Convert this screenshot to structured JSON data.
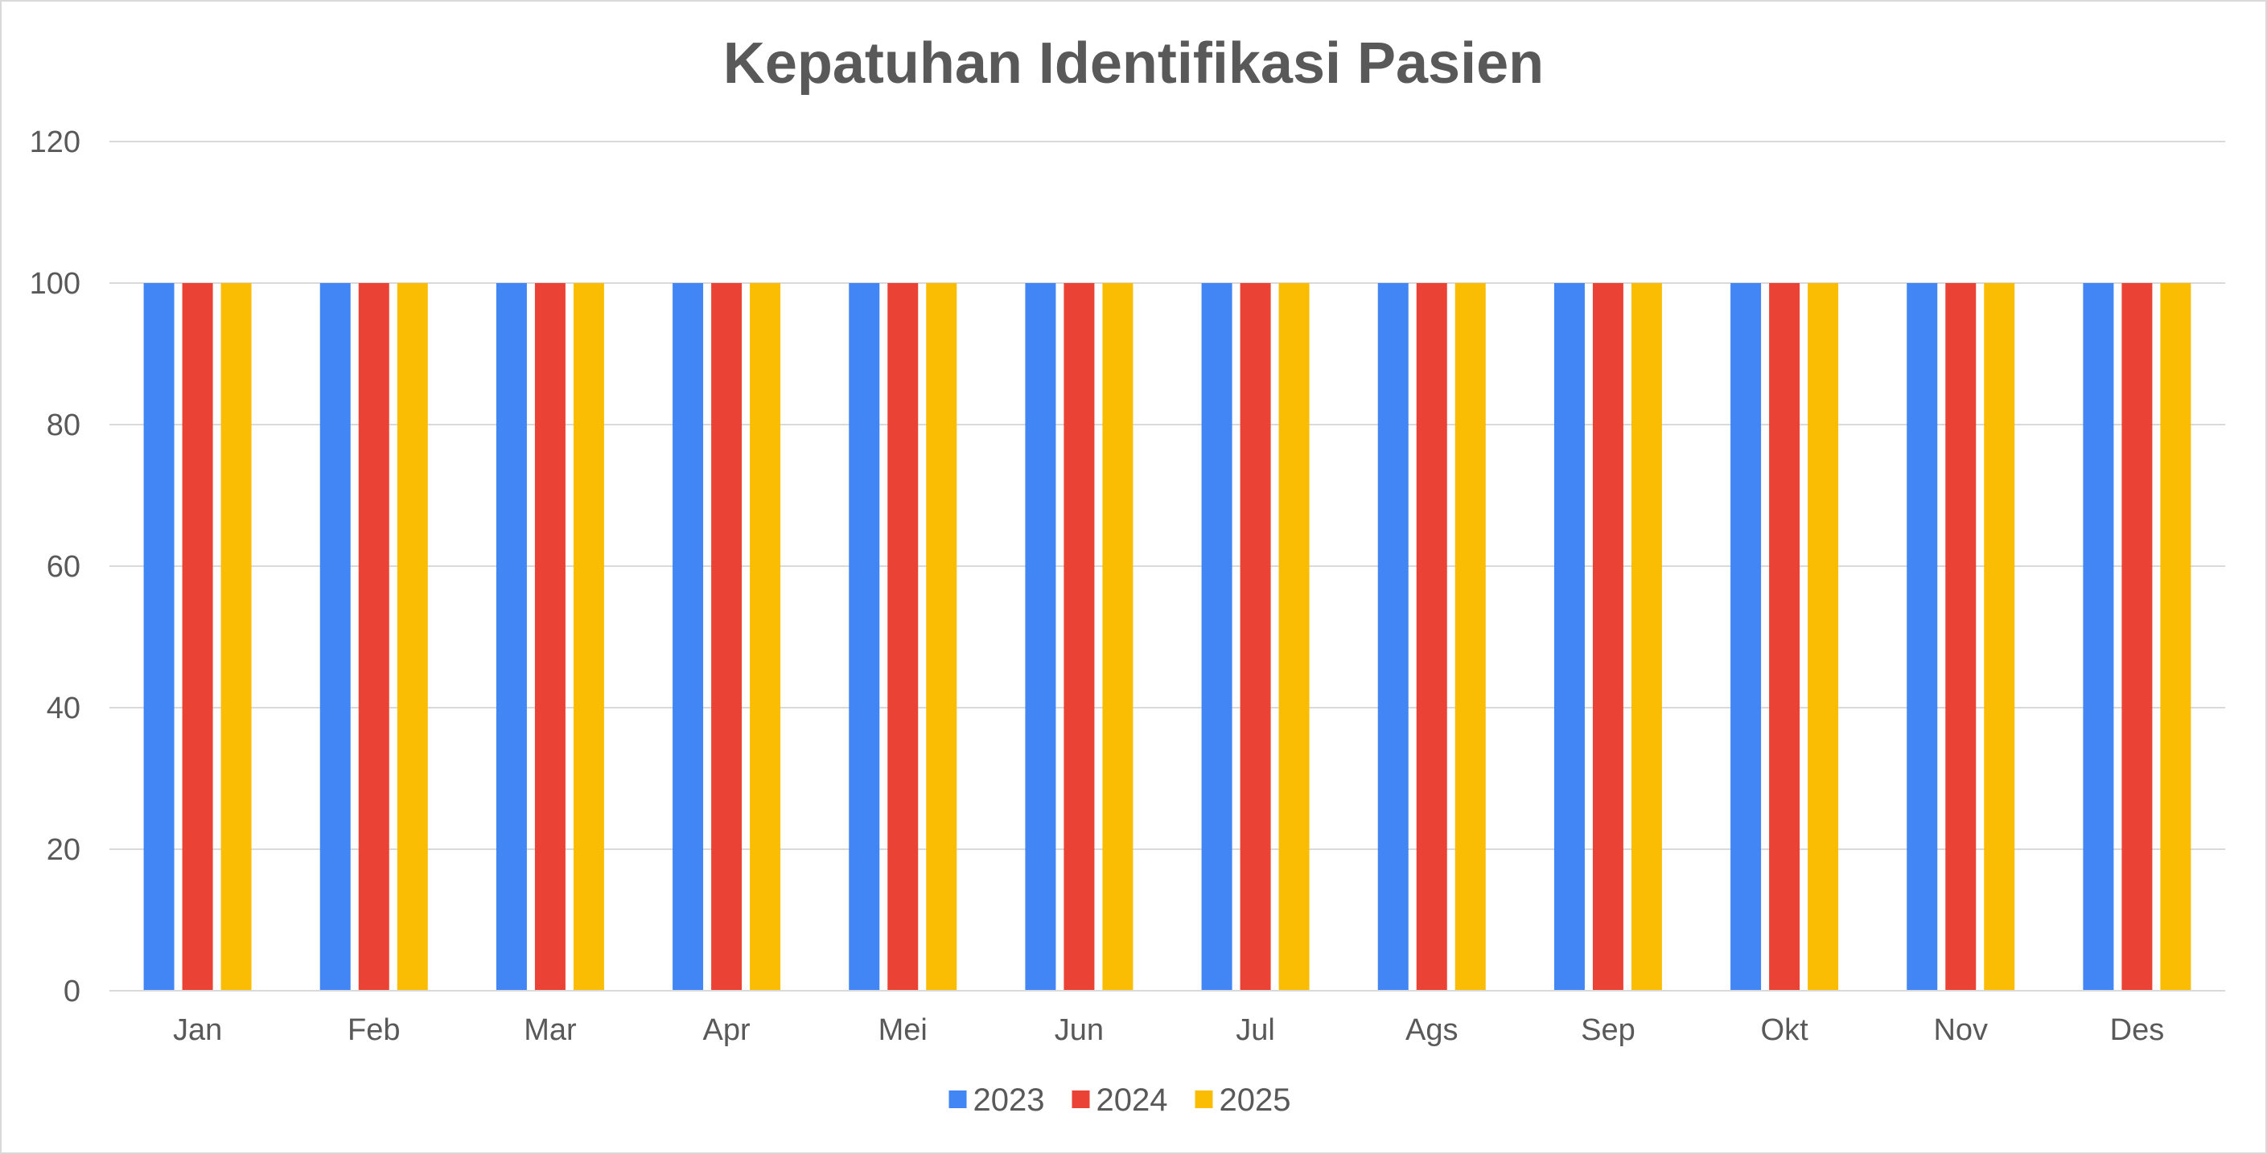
{
  "chart_data": {
    "type": "bar",
    "title": "Kepatuhan Identifikasi Pasien",
    "xlabel": "",
    "ylabel": "",
    "ylim": [
      0,
      120
    ],
    "yticks": [
      "0",
      "20",
      "40",
      "60",
      "80",
      "100",
      "120"
    ],
    "categories": [
      "Jan",
      "Feb",
      "Mar",
      "Apr",
      "Mei",
      "Jun",
      "Jul",
      "Ags",
      "Sep",
      "Okt",
      "Nov",
      "Des"
    ],
    "series": [
      {
        "name": "2023",
        "color": "#4285F4",
        "values": [
          100,
          100,
          100,
          100,
          100,
          100,
          100,
          100,
          100,
          100,
          100,
          100
        ]
      },
      {
        "name": "2024",
        "color": "#EA4335",
        "values": [
          100,
          100,
          100,
          100,
          100,
          100,
          100,
          100,
          100,
          100,
          100,
          100
        ]
      },
      {
        "name": "2025",
        "color": "#FBBC04",
        "values": [
          100,
          100,
          100,
          100,
          100,
          100,
          100,
          100,
          100,
          100,
          100,
          100
        ]
      }
    ],
    "grid": true,
    "gridline_color": "#d9d9d9",
    "legend_position": "bottom"
  }
}
